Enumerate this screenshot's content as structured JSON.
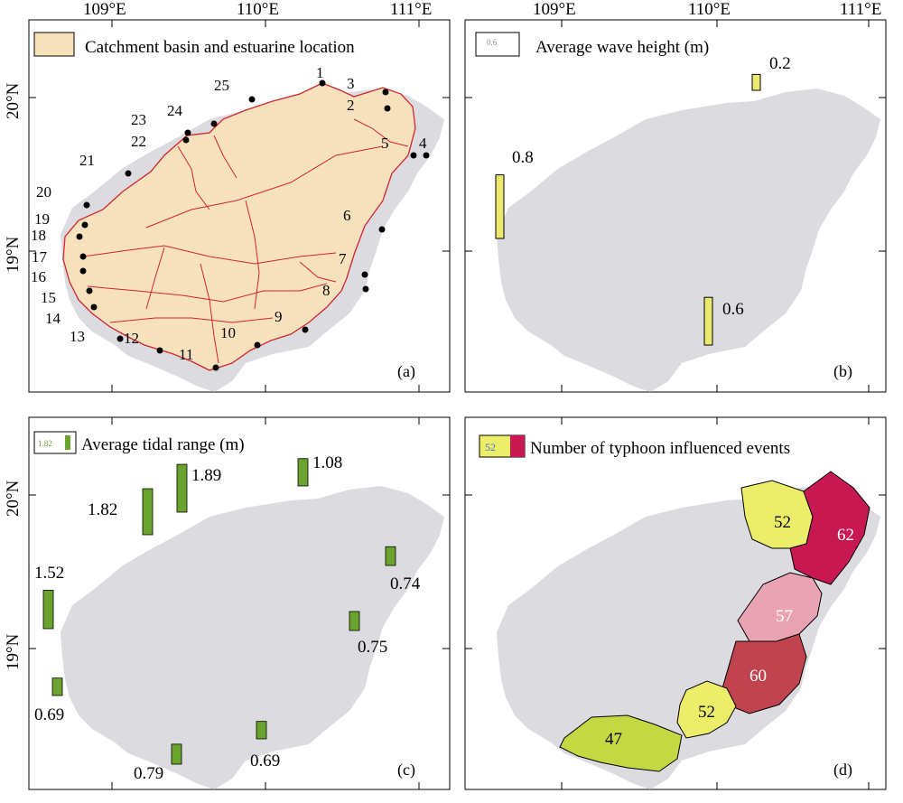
{
  "axes": {
    "lon_ticks": [
      "109°E",
      "110°E",
      "111°E"
    ],
    "lat_ticks": [
      "20°N",
      "19°N"
    ]
  },
  "panel_a": {
    "legend": "Catchment basin and estuarine location",
    "tag": "(a)",
    "stations": [
      "1",
      "2",
      "3",
      "4",
      "5",
      "6",
      "7",
      "8",
      "9",
      "10",
      "11",
      "12",
      "13",
      "14",
      "15",
      "16",
      "17",
      "18",
      "19",
      "20",
      "21",
      "22",
      "23",
      "24",
      "25"
    ],
    "colors": {
      "fill": "#f8e2bd",
      "border": "#d3242f",
      "island": "#dcdbe0"
    }
  },
  "panel_b": {
    "legend": "Average wave height (m)",
    "legend_icon_text": "0.6",
    "tag": "(b)",
    "bars": [
      {
        "site": "north",
        "value": 0.2,
        "label": "0.2"
      },
      {
        "site": "west",
        "value": 0.8,
        "label": "0.8"
      },
      {
        "site": "south",
        "value": 0.6,
        "label": "0.6"
      }
    ],
    "colors": {
      "bar": "#ecea6e"
    }
  },
  "panel_c": {
    "legend": "Average tidal range (m)",
    "legend_icon_text": "1.82",
    "tag": "(c)",
    "bars": [
      {
        "site": "north-1",
        "value": 1.08,
        "label": "1.08"
      },
      {
        "site": "north-west-2",
        "value": 1.89,
        "label": "1.89"
      },
      {
        "site": "north-west-1",
        "value": 1.82,
        "label": "1.82"
      },
      {
        "site": "west",
        "value": 1.52,
        "label": "1.52"
      },
      {
        "site": "east-north",
        "value": 0.74,
        "label": "0.74"
      },
      {
        "site": "east",
        "value": 0.75,
        "label": "0.75"
      },
      {
        "site": "south-west",
        "value": 0.69,
        "label": "0.69"
      },
      {
        "site": "south",
        "value": 0.79,
        "label": "0.79"
      },
      {
        "site": "south-east",
        "value": 0.69,
        "label": "0.69"
      }
    ],
    "colors": {
      "bar": "#6aa32d"
    }
  },
  "panel_d": {
    "legend": "Number of typhoon influenced events",
    "legend_icon_text": "52",
    "tag": "(d)",
    "regions": [
      {
        "name": "north",
        "count": 52,
        "label": "52",
        "color": "#ecee6a"
      },
      {
        "name": "north-east",
        "count": 62,
        "label": "62",
        "color": "#c71852"
      },
      {
        "name": "east-north",
        "count": 57,
        "label": "57",
        "color": "#eaa3b3"
      },
      {
        "name": "east",
        "count": 60,
        "label": "60",
        "color": "#c1434f"
      },
      {
        "name": "south-east",
        "count": 52,
        "label": "52",
        "color": "#ecee6a"
      },
      {
        "name": "south",
        "count": 47,
        "label": "47",
        "color": "#c4d843"
      }
    ]
  }
}
